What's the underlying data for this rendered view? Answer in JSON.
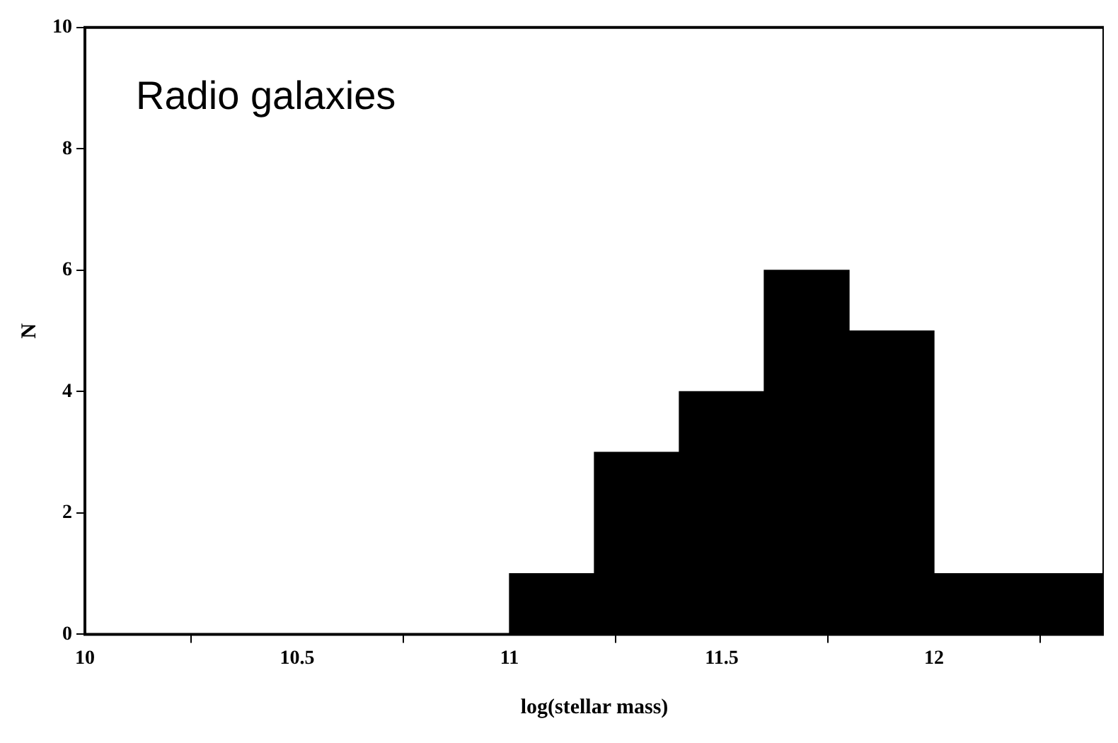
{
  "chart_data": {
    "type": "histogram",
    "xlabel": "log(stellar mass)",
    "ylabel": "N",
    "bins": [
      11,
      11.2,
      11.4,
      11.6,
      11.8,
      12,
      12.2,
      12.4
    ],
    "values": [
      1,
      3,
      4,
      6,
      5,
      1,
      1
    ],
    "color": "#000000",
    "xlim": [
      10,
      12.4
    ],
    "xticks": [
      10,
      10.5,
      11,
      11.5,
      12
    ],
    "ylim": [
      0,
      10
    ],
    "yticks": [
      0,
      2,
      4,
      6,
      8,
      10
    ],
    "grid": false,
    "legend": false,
    "annotations": [
      "Radio galaxies"
    ]
  }
}
